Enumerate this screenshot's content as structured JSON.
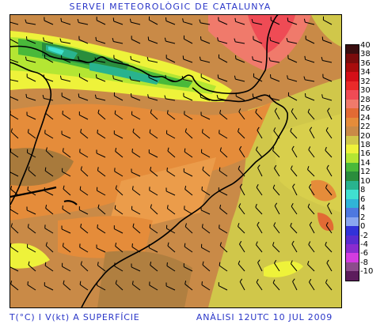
{
  "header": {
    "title": "SERVEI METEOROLÒGIC DE CATALUNYA"
  },
  "footer": {
    "left": "T(°C) I V(kt) A SUPERFÍCIE",
    "right": "ANÀLISI 12UTC 10 JUL 2009"
  },
  "legend": {
    "steps": [
      {
        "label": "40",
        "color": "#3a0f10"
      },
      {
        "label": "38",
        "color": "#7a0c0c"
      },
      {
        "label": "36",
        "color": "#a80c0c"
      },
      {
        "label": "34",
        "color": "#d40f18"
      },
      {
        "label": "32",
        "color": "#ea2a2a"
      },
      {
        "label": "30",
        "color": "#ef4b55"
      },
      {
        "label": "28",
        "color": "#f07a6b"
      },
      {
        "label": "26",
        "color": "#e26a34"
      },
      {
        "label": "24",
        "color": "#e58c3a"
      },
      {
        "label": "22",
        "color": "#c98a47"
      },
      {
        "label": "20",
        "color": "#d0c74a"
      },
      {
        "label": "18",
        "color": "#eef23a"
      },
      {
        "label": "16",
        "color": "#b4e633"
      },
      {
        "label": "14",
        "color": "#49b93a"
      },
      {
        "label": "12",
        "color": "#2a8d3c"
      },
      {
        "label": "10",
        "color": "#29b38e"
      },
      {
        "label": "8",
        "color": "#40e0d0"
      },
      {
        "label": "6",
        "color": "#30b4d8"
      },
      {
        "label": "4",
        "color": "#4e78e0"
      },
      {
        "label": "2",
        "color": "#8aa6f0"
      },
      {
        "label": "0",
        "color": "#3232d8"
      },
      {
        "label": "-2",
        "color": "#5a2cd0"
      },
      {
        "label": "-4",
        "color": "#8a2ccf"
      },
      {
        "label": "-6",
        "color": "#d43ce0"
      },
      {
        "label": "-8",
        "color": "#8c4c8c"
      },
      {
        "label": "-10",
        "color": "#5c1c5c"
      }
    ]
  },
  "map": {
    "palette": {
      "background": "#c98a47",
      "dark_brown": "#a87a3c",
      "orange": "#e58c3a",
      "orange_light": "#eb9c4a",
      "khaki": "#d0c74a",
      "yellow": "#eef23a",
      "light_green": "#b4e633",
      "green": "#49b93a",
      "dark_green": "#2a8d3c",
      "teal": "#29b38e",
      "cyan": "#40e0d0",
      "pink": "#ef4b55",
      "salmon": "#f07a6b",
      "border": "#000000"
    }
  }
}
